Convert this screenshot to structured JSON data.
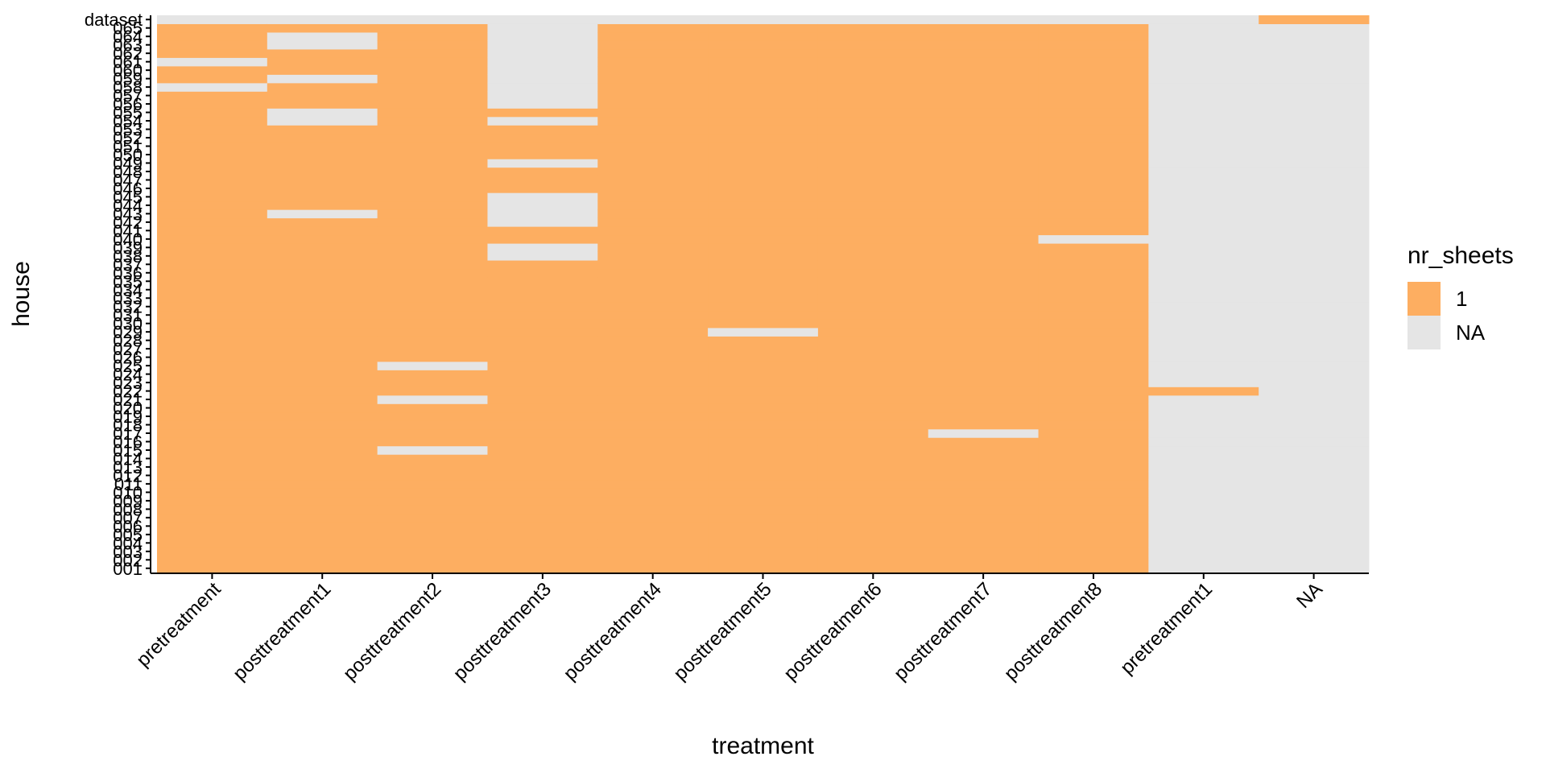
{
  "chart_data": {
    "type": "heatmap",
    "xlabel": "treatment",
    "ylabel": "house",
    "x_categories": [
      "pretreatment",
      "posttreatment1",
      "posttreatment2",
      "posttreatment3",
      "posttreatment4",
      "posttreatment5",
      "posttreatment6",
      "posttreatment7",
      "posttreatment8",
      "pretreatment1",
      "NA"
    ],
    "y_categories": [
      "001",
      "002",
      "003",
      "004",
      "005",
      "006",
      "007",
      "008",
      "009",
      "010",
      "011",
      "012",
      "013",
      "014",
      "015",
      "016",
      "017",
      "018",
      "019",
      "020",
      "021",
      "022",
      "023",
      "024",
      "025",
      "026",
      "027",
      "028",
      "029",
      "030",
      "031",
      "032",
      "033",
      "034",
      "035",
      "036",
      "037",
      "038",
      "039",
      "040",
      "041",
      "042",
      "043",
      "044",
      "045",
      "046",
      "047",
      "048",
      "049",
      "050",
      "051",
      "052",
      "053",
      "054",
      "055",
      "056",
      "057",
      "058",
      "059",
      "060",
      "061",
      "062",
      "063",
      "064",
      "065",
      "dataset"
    ],
    "legend": {
      "title": "nr_sheets",
      "entries": [
        {
          "label": "1",
          "color": "#FDAE61"
        },
        {
          "label": "NA",
          "color": "#E5E5E5"
        }
      ],
      "position": "right"
    },
    "default_value_main_columns": "1",
    "default_value_extra_columns": "NA",
    "main_columns": [
      "pretreatment",
      "posttreatment1",
      "posttreatment2",
      "posttreatment3",
      "posttreatment4",
      "posttreatment5",
      "posttreatment6",
      "posttreatment7",
      "posttreatment8"
    ],
    "extra_columns": [
      "pretreatment1",
      "NA"
    ],
    "dataset_row": {
      "1": [
        "NA"
      ]
    },
    "exceptions": [
      {
        "treatment": "pretreatment",
        "house": "058",
        "value": "NA"
      },
      {
        "treatment": "pretreatment",
        "house": "061",
        "value": "NA"
      },
      {
        "treatment": "posttreatment1",
        "house": "063",
        "value": "NA"
      },
      {
        "treatment": "posttreatment1",
        "house": "064",
        "value": "NA"
      },
      {
        "treatment": "posttreatment1",
        "house": "059",
        "value": "NA"
      },
      {
        "treatment": "posttreatment1",
        "house": "054",
        "value": "NA"
      },
      {
        "treatment": "posttreatment1",
        "house": "055",
        "value": "NA"
      },
      {
        "treatment": "posttreatment1",
        "house": "043",
        "value": "NA"
      },
      {
        "treatment": "posttreatment2",
        "house": "025",
        "value": "NA"
      },
      {
        "treatment": "posttreatment2",
        "house": "021",
        "value": "NA"
      },
      {
        "treatment": "posttreatment2",
        "house": "015",
        "value": "NA"
      },
      {
        "treatment": "posttreatment3",
        "house": "056",
        "value": "NA"
      },
      {
        "treatment": "posttreatment3",
        "house": "057",
        "value": "NA"
      },
      {
        "treatment": "posttreatment3",
        "house": "058",
        "value": "NA"
      },
      {
        "treatment": "posttreatment3",
        "house": "059",
        "value": "NA"
      },
      {
        "treatment": "posttreatment3",
        "house": "060",
        "value": "NA"
      },
      {
        "treatment": "posttreatment3",
        "house": "061",
        "value": "NA"
      },
      {
        "treatment": "posttreatment3",
        "house": "062",
        "value": "NA"
      },
      {
        "treatment": "posttreatment3",
        "house": "063",
        "value": "NA"
      },
      {
        "treatment": "posttreatment3",
        "house": "064",
        "value": "NA"
      },
      {
        "treatment": "posttreatment3",
        "house": "065",
        "value": "NA"
      },
      {
        "treatment": "posttreatment3",
        "house": "054",
        "value": "NA"
      },
      {
        "treatment": "posttreatment3",
        "house": "049",
        "value": "NA"
      },
      {
        "treatment": "posttreatment3",
        "house": "042",
        "value": "NA"
      },
      {
        "treatment": "posttreatment3",
        "house": "043",
        "value": "NA"
      },
      {
        "treatment": "posttreatment3",
        "house": "044",
        "value": "NA"
      },
      {
        "treatment": "posttreatment3",
        "house": "045",
        "value": "NA"
      },
      {
        "treatment": "posttreatment3",
        "house": "038",
        "value": "NA"
      },
      {
        "treatment": "posttreatment3",
        "house": "039",
        "value": "NA"
      },
      {
        "treatment": "posttreatment5",
        "house": "029",
        "value": "NA"
      },
      {
        "treatment": "posttreatment7",
        "house": "017",
        "value": "NA"
      },
      {
        "treatment": "posttreatment8",
        "house": "040",
        "value": "NA"
      },
      {
        "treatment": "pretreatment1",
        "house": "022",
        "value": "1"
      }
    ]
  }
}
